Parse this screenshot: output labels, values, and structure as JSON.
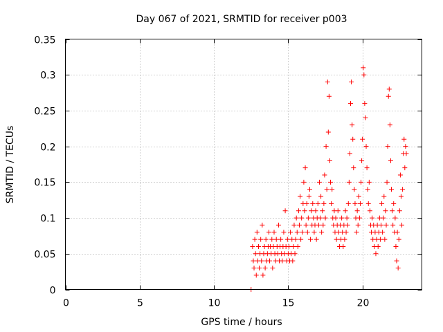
{
  "chart_data": {
    "type": "scatter",
    "title": "Day 067 of 2021, SRMTID for receiver p003",
    "xlabel": "GPS time / hours",
    "ylabel": "SRMTID / TECUs",
    "xlim": [
      0,
      24
    ],
    "ylim": [
      0,
      0.35
    ],
    "x_ticks": [
      0,
      5,
      10,
      15,
      20
    ],
    "x_tick_labels": [
      "0",
      "5",
      "10",
      "15",
      "20"
    ],
    "y_ticks": [
      0,
      0.05,
      0.1,
      0.15,
      0.2,
      0.25,
      0.3,
      0.35
    ],
    "y_tick_labels": [
      "0",
      "0.05",
      "0.1",
      "0.15",
      "0.2",
      "0.25",
      "0.3",
      "0.35"
    ],
    "grid": true,
    "marker": "+",
    "color": "#ff0000",
    "series": [
      {
        "name": "SRMTID",
        "points": [
          [
            12.5,
            0.0
          ],
          [
            12.6,
            0.06
          ],
          [
            12.65,
            0.04
          ],
          [
            12.7,
            0.03
          ],
          [
            12.75,
            0.07
          ],
          [
            12.8,
            0.05
          ],
          [
            12.85,
            0.02
          ],
          [
            12.9,
            0.08
          ],
          [
            12.95,
            0.04
          ],
          [
            13.0,
            0.06
          ],
          [
            13.05,
            0.03
          ],
          [
            13.1,
            0.05
          ],
          [
            13.15,
            0.07
          ],
          [
            13.2,
            0.04
          ],
          [
            13.25,
            0.09
          ],
          [
            13.3,
            0.02
          ],
          [
            13.35,
            0.05
          ],
          [
            13.4,
            0.06
          ],
          [
            13.45,
            0.03
          ],
          [
            13.5,
            0.07
          ],
          [
            13.55,
            0.04
          ],
          [
            13.6,
            0.05
          ],
          [
            13.65,
            0.06
          ],
          [
            13.7,
            0.08
          ],
          [
            13.75,
            0.04
          ],
          [
            13.8,
            0.06
          ],
          [
            13.85,
            0.05
          ],
          [
            13.9,
            0.07
          ],
          [
            13.95,
            0.03
          ],
          [
            14.0,
            0.06
          ],
          [
            14.05,
            0.08
          ],
          [
            14.1,
            0.05
          ],
          [
            14.15,
            0.04
          ],
          [
            14.2,
            0.07
          ],
          [
            14.25,
            0.06
          ],
          [
            14.3,
            0.05
          ],
          [
            14.35,
            0.09
          ],
          [
            14.4,
            0.04
          ],
          [
            14.45,
            0.06
          ],
          [
            14.5,
            0.07
          ],
          [
            14.55,
            0.05
          ],
          [
            14.6,
            0.04
          ],
          [
            14.65,
            0.06
          ],
          [
            14.7,
            0.08
          ],
          [
            14.75,
            0.05
          ],
          [
            14.8,
            0.11
          ],
          [
            14.85,
            0.06
          ],
          [
            14.9,
            0.04
          ],
          [
            14.95,
            0.07
          ],
          [
            15.0,
            0.05
          ],
          [
            15.05,
            0.06
          ],
          [
            15.1,
            0.04
          ],
          [
            15.15,
            0.08
          ],
          [
            15.2,
            0.05
          ],
          [
            15.25,
            0.07
          ],
          [
            15.3,
            0.04
          ],
          [
            15.35,
            0.06
          ],
          [
            15.4,
            0.09
          ],
          [
            15.45,
            0.05
          ],
          [
            15.5,
            0.07
          ],
          [
            15.55,
            0.1
          ],
          [
            15.6,
            0.08
          ],
          [
            15.65,
            0.06
          ],
          [
            15.7,
            0.11
          ],
          [
            15.75,
            0.09
          ],
          [
            15.8,
            0.13
          ],
          [
            15.85,
            0.07
          ],
          [
            15.9,
            0.1
          ],
          [
            15.95,
            0.08
          ],
          [
            16.0,
            0.12
          ],
          [
            16.05,
            0.15
          ],
          [
            16.1,
            0.11
          ],
          [
            16.15,
            0.17
          ],
          [
            16.2,
            0.09
          ],
          [
            16.25,
            0.12
          ],
          [
            16.3,
            0.08
          ],
          [
            16.35,
            0.1
          ],
          [
            16.4,
            0.13
          ],
          [
            16.45,
            0.14
          ],
          [
            16.5,
            0.07
          ],
          [
            16.55,
            0.11
          ],
          [
            16.6,
            0.09
          ],
          [
            16.65,
            0.12
          ],
          [
            16.7,
            0.1
          ],
          [
            16.75,
            0.08
          ],
          [
            16.8,
            0.09
          ],
          [
            16.85,
            0.11
          ],
          [
            16.9,
            0.07
          ],
          [
            16.95,
            0.1
          ],
          [
            17.0,
            0.12
          ],
          [
            17.05,
            0.09
          ],
          [
            17.1,
            0.15
          ],
          [
            17.15,
            0.1
          ],
          [
            17.2,
            0.13
          ],
          [
            17.25,
            0.08
          ],
          [
            17.3,
            0.11
          ],
          [
            17.35,
            0.09
          ],
          [
            17.4,
            0.12
          ],
          [
            17.45,
            0.16
          ],
          [
            17.5,
            0.1
          ],
          [
            17.55,
            0.2
          ],
          [
            17.6,
            0.14
          ],
          [
            17.65,
            0.29
          ],
          [
            17.7,
            0.22
          ],
          [
            17.75,
            0.27
          ],
          [
            17.8,
            0.18
          ],
          [
            17.85,
            0.15
          ],
          [
            17.9,
            0.12
          ],
          [
            17.95,
            0.14
          ],
          [
            18.0,
            0.1
          ],
          [
            18.05,
            0.09
          ],
          [
            18.1,
            0.11
          ],
          [
            18.15,
            0.08
          ],
          [
            18.2,
            0.1
          ],
          [
            18.25,
            0.07
          ],
          [
            18.3,
            0.09
          ],
          [
            18.35,
            0.11
          ],
          [
            18.4,
            0.08
          ],
          [
            18.45,
            0.06
          ],
          [
            18.5,
            0.09
          ],
          [
            18.55,
            0.07
          ],
          [
            18.6,
            0.1
          ],
          [
            18.65,
            0.08
          ],
          [
            18.7,
            0.06
          ],
          [
            18.75,
            0.09
          ],
          [
            18.8,
            0.07
          ],
          [
            18.85,
            0.11
          ],
          [
            18.9,
            0.08
          ],
          [
            18.95,
            0.1
          ],
          [
            19.0,
            0.09
          ],
          [
            19.05,
            0.12
          ],
          [
            19.1,
            0.15
          ],
          [
            19.15,
            0.19
          ],
          [
            19.2,
            0.26
          ],
          [
            19.25,
            0.29
          ],
          [
            19.3,
            0.23
          ],
          [
            19.35,
            0.21
          ],
          [
            19.4,
            0.17
          ],
          [
            19.45,
            0.14
          ],
          [
            19.5,
            0.12
          ],
          [
            19.55,
            0.1
          ],
          [
            19.6,
            0.08
          ],
          [
            19.65,
            0.11
          ],
          [
            19.7,
            0.09
          ],
          [
            19.75,
            0.13
          ],
          [
            19.8,
            0.1
          ],
          [
            19.85,
            0.12
          ],
          [
            19.9,
            0.15
          ],
          [
            19.95,
            0.18
          ],
          [
            20.0,
            0.21
          ],
          [
            20.05,
            0.31
          ],
          [
            20.1,
            0.3
          ],
          [
            20.15,
            0.26
          ],
          [
            20.2,
            0.24
          ],
          [
            20.25,
            0.2
          ],
          [
            20.3,
            0.17
          ],
          [
            20.35,
            0.14
          ],
          [
            20.4,
            0.12
          ],
          [
            20.45,
            0.15
          ],
          [
            20.5,
            0.11
          ],
          [
            20.55,
            0.09
          ],
          [
            20.6,
            0.08
          ],
          [
            20.65,
            0.1
          ],
          [
            20.7,
            0.07
          ],
          [
            20.75,
            0.09
          ],
          [
            20.8,
            0.06
          ],
          [
            20.85,
            0.08
          ],
          [
            20.9,
            0.05
          ],
          [
            20.95,
            0.07
          ],
          [
            21.0,
            0.09
          ],
          [
            21.05,
            0.06
          ],
          [
            21.1,
            0.08
          ],
          [
            21.15,
            0.1
          ],
          [
            21.2,
            0.07
          ],
          [
            21.25,
            0.09
          ],
          [
            21.3,
            0.12
          ],
          [
            21.35,
            0.08
          ],
          [
            21.4,
            0.1
          ],
          [
            21.45,
            0.13
          ],
          [
            21.5,
            0.07
          ],
          [
            21.55,
            0.11
          ],
          [
            21.6,
            0.09
          ],
          [
            21.65,
            0.15
          ],
          [
            21.7,
            0.2
          ],
          [
            21.75,
            0.27
          ],
          [
            21.8,
            0.28
          ],
          [
            21.85,
            0.23
          ],
          [
            21.9,
            0.18
          ],
          [
            21.95,
            0.14
          ],
          [
            22.0,
            0.11
          ],
          [
            22.05,
            0.09
          ],
          [
            22.1,
            0.12
          ],
          [
            22.15,
            0.08
          ],
          [
            22.2,
            0.1
          ],
          [
            22.25,
            0.06
          ],
          [
            22.3,
            0.04
          ],
          [
            22.35,
            0.08
          ],
          [
            22.4,
            0.03
          ],
          [
            22.45,
            0.07
          ],
          [
            22.5,
            0.11
          ],
          [
            22.55,
            0.16
          ],
          [
            22.6,
            0.13
          ],
          [
            22.65,
            0.09
          ],
          [
            22.7,
            0.14
          ],
          [
            22.75,
            0.19
          ],
          [
            22.8,
            0.21
          ],
          [
            22.85,
            0.17
          ],
          [
            22.9,
            0.2
          ],
          [
            22.95,
            0.19
          ]
        ]
      }
    ]
  }
}
